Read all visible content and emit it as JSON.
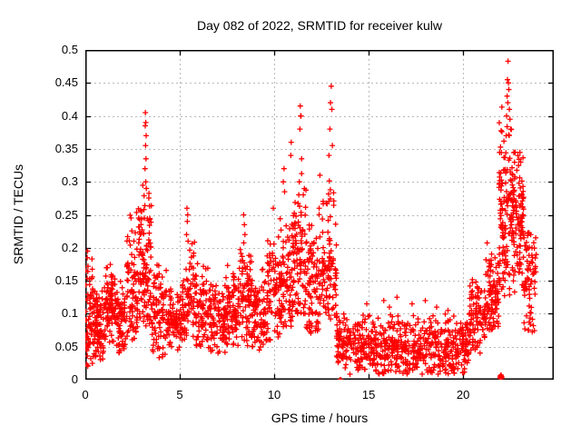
{
  "figure": {
    "title": "Day 082 of 2022, SRMTID for receiver kulw",
    "x_axis": {
      "label": "GPS time / hours",
      "tick_labels": [
        "0",
        "5",
        "10",
        "15",
        "20"
      ],
      "tick_values": [
        0,
        5,
        10,
        15,
        20
      ]
    },
    "y_axis": {
      "label": "SRMTID / TECUs",
      "tick_labels": [
        "0",
        "0.05",
        "0.1",
        "0.15",
        "0.2",
        "0.25",
        "0.3",
        "0.35",
        "0.4",
        "0.45",
        "0.5"
      ],
      "tick_values": [
        0,
        0.05,
        0.1,
        0.15,
        0.2,
        0.25,
        0.3,
        0.35,
        0.4,
        0.45,
        0.5
      ]
    },
    "colors": {
      "marker": "#ff0000",
      "grid": "#b8b8b8",
      "axis": "#000000",
      "text": "#000000",
      "background": "#ffffff"
    }
  },
  "chart_data": {
    "type": "scatter",
    "title": "Day 082 of 2022, SRMTID for receiver kulw",
    "xlabel": "GPS time / hours",
    "ylabel": "SRMTID / TECUs",
    "xlim": [
      0,
      24.8
    ],
    "ylim": [
      0,
      0.5
    ],
    "grid": true,
    "legend": "none",
    "marker": "plus",
    "marker_color": "#ff0000",
    "seed": 20220082,
    "cluster_segment_format": "[x_start_hour, x_end_hour, n_points, y_min, y_mode, y_max]",
    "cluster_segments": [
      [
        0.0,
        0.45,
        70,
        0.02,
        0.09,
        0.2
      ],
      [
        0.45,
        1.0,
        85,
        0.03,
        0.08,
        0.16
      ],
      [
        1.0,
        1.6,
        85,
        0.05,
        0.12,
        0.18
      ],
      [
        1.6,
        2.2,
        75,
        0.04,
        0.09,
        0.17
      ],
      [
        2.2,
        2.8,
        85,
        0.06,
        0.14,
        0.28
      ],
      [
        2.8,
        3.5,
        115,
        0.08,
        0.16,
        0.33
      ],
      [
        3.5,
        4.3,
        95,
        0.03,
        0.1,
        0.18
      ],
      [
        4.3,
        5.1,
        85,
        0.04,
        0.09,
        0.14
      ],
      [
        5.1,
        5.8,
        80,
        0.06,
        0.12,
        0.23
      ],
      [
        5.8,
        6.5,
        80,
        0.05,
        0.11,
        0.2
      ],
      [
        6.5,
        7.4,
        95,
        0.04,
        0.09,
        0.16
      ],
      [
        7.4,
        8.1,
        85,
        0.05,
        0.1,
        0.19
      ],
      [
        8.1,
        8.8,
        85,
        0.05,
        0.12,
        0.23
      ],
      [
        8.8,
        9.6,
        85,
        0.04,
        0.1,
        0.17
      ],
      [
        9.6,
        10.3,
        80,
        0.06,
        0.13,
        0.24
      ],
      [
        10.3,
        11.0,
        90,
        0.08,
        0.15,
        0.3
      ],
      [
        11.0,
        11.7,
        95,
        0.1,
        0.18,
        0.36
      ],
      [
        11.7,
        12.5,
        90,
        0.07,
        0.14,
        0.28
      ],
      [
        12.5,
        13.3,
        100,
        0.09,
        0.17,
        0.35
      ],
      [
        13.3,
        13.7,
        45,
        0.02,
        0.06,
        0.12
      ],
      [
        13.7,
        20.3,
        620,
        0.008,
        0.05,
        0.105
      ],
      [
        20.3,
        21.2,
        95,
        0.04,
        0.09,
        0.17
      ],
      [
        21.2,
        21.9,
        95,
        0.07,
        0.13,
        0.22
      ],
      [
        21.9,
        22.6,
        130,
        0.12,
        0.25,
        0.42
      ],
      [
        22.6,
        23.2,
        105,
        0.13,
        0.24,
        0.35
      ],
      [
        23.2,
        23.9,
        75,
        0.07,
        0.15,
        0.28
      ]
    ],
    "notable_points": [
      [
        0.12,
        0.195
      ],
      [
        0.1,
        0.185
      ],
      [
        0.14,
        0.172
      ],
      [
        3.18,
        0.405
      ],
      [
        3.2,
        0.39
      ],
      [
        3.17,
        0.385
      ],
      [
        3.22,
        0.37
      ],
      [
        3.19,
        0.355
      ],
      [
        3.21,
        0.335
      ],
      [
        3.16,
        0.32
      ],
      [
        3.2,
        0.3
      ],
      [
        3.23,
        0.29
      ],
      [
        5.38,
        0.26
      ],
      [
        5.42,
        0.25
      ],
      [
        5.4,
        0.24
      ],
      [
        5.36,
        0.22
      ],
      [
        5.44,
        0.21
      ],
      [
        8.38,
        0.25
      ],
      [
        8.42,
        0.235
      ],
      [
        8.45,
        0.22
      ],
      [
        9.95,
        0.26
      ],
      [
        10.52,
        0.32
      ],
      [
        10.48,
        0.3
      ],
      [
        10.55,
        0.285
      ],
      [
        10.9,
        0.36
      ],
      [
        10.88,
        0.34
      ],
      [
        11.38,
        0.415
      ],
      [
        11.42,
        0.4
      ],
      [
        11.4,
        0.4
      ],
      [
        11.36,
        0.38
      ],
      [
        11.45,
        0.335
      ],
      [
        11.33,
        0.3
      ],
      [
        12.42,
        0.31
      ],
      [
        12.38,
        0.26
      ],
      [
        13.02,
        0.445
      ],
      [
        12.98,
        0.42
      ],
      [
        13.05,
        0.41
      ],
      [
        12.95,
        0.38
      ],
      [
        13.08,
        0.355
      ],
      [
        12.9,
        0.34
      ],
      [
        14.9,
        0.115
      ],
      [
        15.8,
        0.12
      ],
      [
        16.1,
        0.11
      ],
      [
        16.5,
        0.125
      ],
      [
        17.3,
        0.115
      ],
      [
        18.0,
        0.12
      ],
      [
        18.6,
        0.11
      ],
      [
        19.2,
        0.105
      ],
      [
        22.38,
        0.483
      ],
      [
        22.35,
        0.455
      ],
      [
        22.4,
        0.45
      ],
      [
        22.42,
        0.44
      ],
      [
        22.33,
        0.43
      ],
      [
        22.37,
        0.42
      ],
      [
        22.45,
        0.41
      ],
      [
        22.3,
        0.4
      ],
      [
        22.48,
        0.395
      ],
      [
        22.52,
        0.38
      ],
      [
        22.28,
        0.37
      ],
      [
        22.75,
        0.345
      ],
      [
        22.9,
        0.34
      ],
      [
        23.05,
        0.33
      ]
    ],
    "axis_marks": [
      [
        13.48,
        0.0
      ],
      [
        13.53,
        0.0
      ],
      [
        21.95,
        0.004
      ],
      [
        21.98,
        0.006
      ],
      [
        22.0,
        0.003
      ],
      [
        22.02,
        0.005
      ],
      [
        22.05,
        0.004
      ],
      [
        21.97,
        0.002
      ],
      [
        22.01,
        0.007
      ],
      [
        22.04,
        0.002
      ]
    ]
  }
}
